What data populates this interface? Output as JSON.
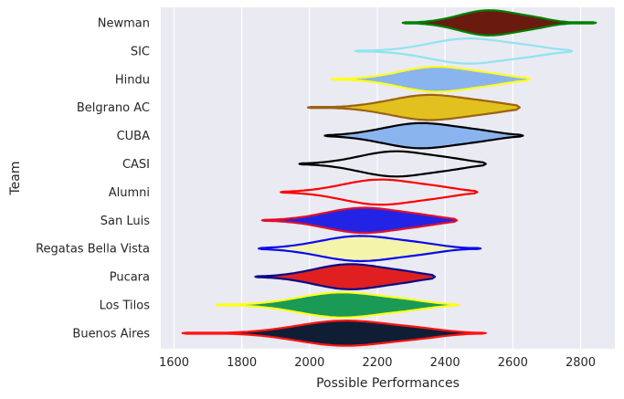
{
  "chart_data": {
    "type": "violin",
    "orientation": "horizontal",
    "xlabel": "Possible Performances",
    "ylabel": "Team",
    "xlim": [
      1570,
      2900
    ],
    "xticks": [
      1600,
      1800,
      2000,
      2200,
      2400,
      2600,
      2800
    ],
    "grid": true,
    "background": "#eaeaf2",
    "categories": [
      "Newman",
      "SIC",
      "Hindu",
      "Belgrano AC",
      "CUBA",
      "CASI",
      "Alumni",
      "San Luis",
      "Regatas Bella Vista",
      "Pucara",
      "Los Tilos",
      "Buenos Aires"
    ],
    "series": [
      {
        "team": "Newman",
        "min": 2275,
        "max": 2845,
        "median": 2530,
        "spread": 88,
        "fill": "#6b1a10",
        "edge": "#008000",
        "filled": true
      },
      {
        "team": "SIC",
        "min": 2135,
        "max": 2775,
        "median": 2470,
        "spread": 115,
        "fill": "#eaeaf2",
        "edge": "#90e4ee",
        "filled": false
      },
      {
        "team": "Hindu",
        "min": 2065,
        "max": 2650,
        "median": 2375,
        "spread": 108,
        "fill": "#8ab4ee",
        "edge": "#ffff1a",
        "filled": true
      },
      {
        "team": "Belgrano AC",
        "min": 1995,
        "max": 2620,
        "median": 2355,
        "spread": 115,
        "fill": "#e2c020",
        "edge": "#9c6410",
        "filled": true
      },
      {
        "team": "CUBA",
        "min": 2045,
        "max": 2630,
        "median": 2330,
        "spread": 112,
        "fill": "#8ab4ee",
        "edge": "#000000",
        "filled": true
      },
      {
        "team": "CASI",
        "min": 1970,
        "max": 2520,
        "median": 2255,
        "spread": 108,
        "fill": "#eaeaf2",
        "edge": "#000000",
        "filled": false
      },
      {
        "team": "Alumni",
        "min": 1915,
        "max": 2495,
        "median": 2210,
        "spread": 112,
        "fill": "#eaeaf2",
        "edge": "#ff0000",
        "filled": false
      },
      {
        "team": "San Luis",
        "min": 1860,
        "max": 2435,
        "median": 2160,
        "spread": 112,
        "fill": "#2323e6",
        "edge": "#e0102a",
        "filled": true
      },
      {
        "team": "Regatas Bella Vista",
        "min": 1850,
        "max": 2505,
        "median": 2150,
        "spread": 118,
        "fill": "#f4f4aa",
        "edge": "#0a0af0",
        "filled": true
      },
      {
        "team": "Pucara",
        "min": 1840,
        "max": 2370,
        "median": 2120,
        "spread": 105,
        "fill": "#e02020",
        "edge": "#0a0a88",
        "filled": true
      },
      {
        "team": "Los Tilos",
        "min": 1725,
        "max": 2440,
        "median": 2095,
        "spread": 125,
        "fill": "#1a9a55",
        "edge": "#ffff1a",
        "filled": true
      },
      {
        "team": "Buenos Aires",
        "min": 1625,
        "max": 2520,
        "median": 2105,
        "spread": 140,
        "fill": "#0f1e35",
        "edge": "#ff1414",
        "filled": true
      }
    ]
  }
}
